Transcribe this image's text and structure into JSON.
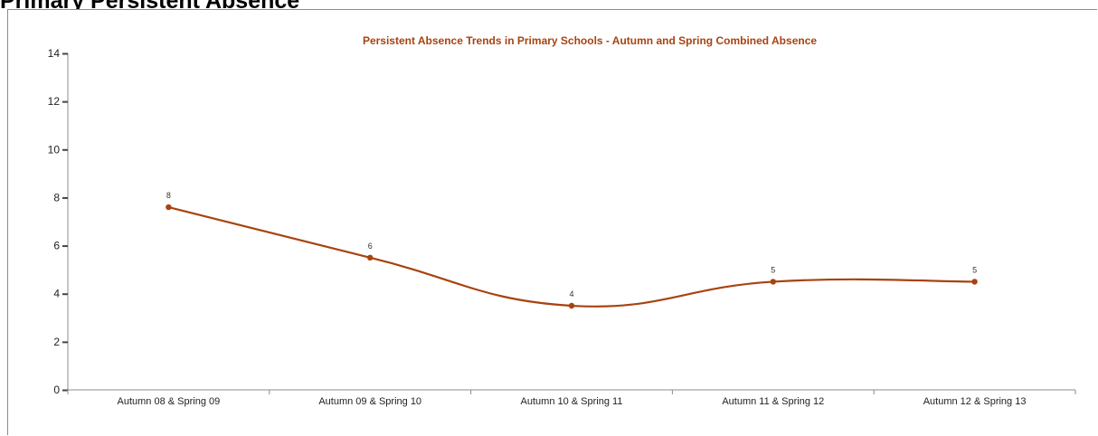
{
  "page": {
    "heading": "Primary Persistent Absence"
  },
  "colors": {
    "series": "#a84310",
    "axis": "#8c8c8c",
    "title": "#a84310"
  },
  "chart_data": {
    "type": "line",
    "title": "Persistent Absence Trends in Primary Schools - Autumn and Spring Combined Absence",
    "xlabel": "",
    "ylabel": "",
    "categories": [
      "Autumn 08 & Spring 09",
      "Autumn 09 & Spring 10",
      "Autumn 10 & Spring 11",
      "Autumn 11 & Spring 12",
      "Autumn 12 & Spring 13"
    ],
    "series": [
      {
        "values": [
          7.6,
          5.5,
          3.5,
          4.5,
          4.5
        ],
        "data_labels": [
          "8",
          "6",
          "4",
          "5",
          "5"
        ]
      }
    ],
    "ylim": [
      0,
      14
    ],
    "yticks": [
      0,
      2,
      4,
      6,
      8,
      10,
      12,
      14
    ],
    "grid": false,
    "legend": "none",
    "smooth": true
  }
}
